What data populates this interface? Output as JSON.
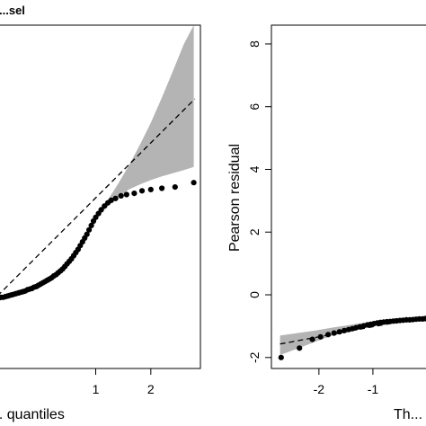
{
  "chart_data": [
    {
      "type": "scatter",
      "title": "...sel",
      "xlabel": "... quantiles",
      "ylabel": "",
      "xlim": [
        -0.9,
        2.9
      ],
      "ylim": [
        -1.1,
        4.35
      ],
      "xticks": [
        1,
        2
      ],
      "xtick_labels": [
        "1",
        "2"
      ],
      "points": [
        [
          -0.85,
          0.0
        ],
        [
          -0.8,
          0.01
        ],
        [
          -0.76,
          0.02
        ],
        [
          -0.72,
          0.03
        ],
        [
          -0.68,
          0.03
        ],
        [
          -0.64,
          0.04
        ],
        [
          -0.6,
          0.05
        ],
        [
          -0.56,
          0.06
        ],
        [
          -0.52,
          0.07
        ],
        [
          -0.48,
          0.08
        ],
        [
          -0.44,
          0.09
        ],
        [
          -0.4,
          0.1
        ],
        [
          -0.36,
          0.11
        ],
        [
          -0.32,
          0.12
        ],
        [
          -0.28,
          0.13
        ],
        [
          -0.24,
          0.15
        ],
        [
          -0.2,
          0.16
        ],
        [
          -0.16,
          0.17
        ],
        [
          -0.12,
          0.19
        ],
        [
          -0.08,
          0.2
        ],
        [
          -0.04,
          0.22
        ],
        [
          0.0,
          0.24
        ],
        [
          0.04,
          0.26
        ],
        [
          0.08,
          0.28
        ],
        [
          0.12,
          0.3
        ],
        [
          0.16,
          0.32
        ],
        [
          0.2,
          0.34
        ],
        [
          0.24,
          0.37
        ],
        [
          0.28,
          0.39
        ],
        [
          0.32,
          0.42
        ],
        [
          0.36,
          0.45
        ],
        [
          0.4,
          0.48
        ],
        [
          0.44,
          0.52
        ],
        [
          0.48,
          0.56
        ],
        [
          0.52,
          0.6
        ],
        [
          0.56,
          0.64
        ],
        [
          0.6,
          0.69
        ],
        [
          0.64,
          0.74
        ],
        [
          0.68,
          0.79
        ],
        [
          0.72,
          0.85
        ],
        [
          0.76,
          0.91
        ],
        [
          0.8,
          0.97
        ],
        [
          0.84,
          1.03
        ],
        [
          0.88,
          1.1
        ],
        [
          0.92,
          1.17
        ],
        [
          0.96,
          1.24
        ],
        [
          1.0,
          1.3
        ],
        [
          1.05,
          1.36
        ],
        [
          1.1,
          1.42
        ],
        [
          1.16,
          1.48
        ],
        [
          1.22,
          1.53
        ],
        [
          1.28,
          1.57
        ],
        [
          1.36,
          1.6
        ],
        [
          1.46,
          1.64
        ],
        [
          1.56,
          1.66
        ],
        [
          1.7,
          1.68
        ],
        [
          1.84,
          1.72
        ],
        [
          2.0,
          1.74
        ],
        [
          2.2,
          1.76
        ],
        [
          2.44,
          1.78
        ],
        [
          2.78,
          1.85
        ]
      ],
      "reference_line": [
        [
          -0.9,
          -0.05
        ],
        [
          2.8,
          3.18
        ]
      ],
      "envelope": {
        "x": [
          1.0,
          1.2,
          1.4,
          1.6,
          1.8,
          2.0,
          2.2,
          2.4,
          2.6,
          2.78
        ],
        "upper": [
          1.32,
          1.55,
          1.82,
          2.12,
          2.45,
          2.8,
          3.2,
          3.62,
          4.05,
          4.35
        ],
        "lower": [
          1.28,
          1.46,
          1.62,
          1.74,
          1.82,
          1.89,
          1.95,
          2.0,
          2.05,
          2.1
        ]
      }
    },
    {
      "type": "scatter",
      "title": "",
      "xlabel": "Th...",
      "ylabel": "Pearson residual",
      "xlim": [
        -2.88,
        0.25
      ],
      "ylim": [
        -2.35,
        8.6
      ],
      "xticks": [
        -2,
        -1
      ],
      "xtick_labels": [
        "-2",
        "-1"
      ],
      "yticks": [
        -2,
        0,
        2,
        4,
        6,
        8
      ],
      "ytick_labels": [
        "-2",
        "0",
        "2",
        "4",
        "6",
        "8"
      ],
      "points": [
        [
          -2.7,
          -2.0
        ],
        [
          -2.36,
          -1.7
        ],
        [
          -2.12,
          -1.42
        ],
        [
          -1.97,
          -1.34
        ],
        [
          -1.83,
          -1.27
        ],
        [
          -1.72,
          -1.22
        ],
        [
          -1.62,
          -1.18
        ],
        [
          -1.53,
          -1.14
        ],
        [
          -1.45,
          -1.11
        ],
        [
          -1.38,
          -1.08
        ],
        [
          -1.31,
          -1.05
        ],
        [
          -1.24,
          -1.02
        ],
        [
          -1.17,
          -0.99
        ],
        [
          -1.1,
          -0.96
        ],
        [
          -1.04,
          -0.94
        ],
        [
          -0.98,
          -0.92
        ],
        [
          -0.92,
          -0.9
        ],
        [
          -0.86,
          -0.88
        ],
        [
          -0.8,
          -0.87
        ],
        [
          -0.74,
          -0.86
        ],
        [
          -0.68,
          -0.85
        ],
        [
          -0.62,
          -0.84
        ],
        [
          -0.56,
          -0.83
        ],
        [
          -0.5,
          -0.82
        ],
        [
          -0.44,
          -0.81
        ],
        [
          -0.38,
          -0.8
        ],
        [
          -0.32,
          -0.8
        ],
        [
          -0.26,
          -0.79
        ],
        [
          -0.2,
          -0.78
        ],
        [
          -0.14,
          -0.77
        ],
        [
          -0.08,
          -0.77
        ],
        [
          -0.03,
          -0.76
        ],
        [
          0.0,
          -0.75
        ]
      ],
      "reference_line": [
        [
          -2.72,
          -1.57
        ],
        [
          -0.1,
          -0.73
        ]
      ],
      "envelope": {
        "x": [
          -2.72,
          -2.4,
          -2.1,
          -1.8,
          -1.5,
          -1.2,
          -1.0
        ],
        "upper": [
          -1.3,
          -1.22,
          -1.15,
          -1.06,
          -0.98,
          -0.9,
          -0.85
        ],
        "lower": [
          -1.92,
          -1.72,
          -1.52,
          -1.33,
          -1.2,
          -1.08,
          -1.0
        ]
      }
    }
  ]
}
